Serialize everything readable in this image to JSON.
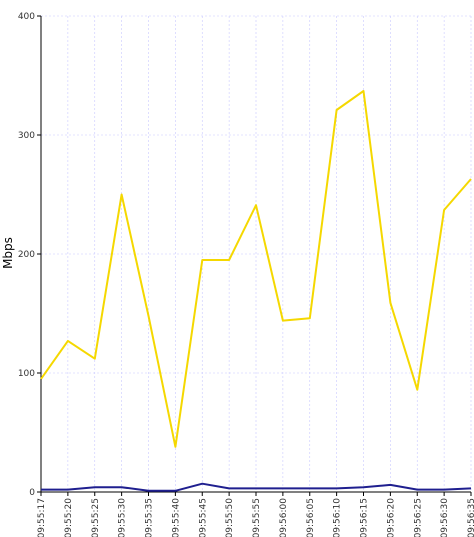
{
  "chart_data": {
    "type": "line",
    "ylabel": "Mbps",
    "xlabel": "",
    "title": "",
    "ylim": [
      0,
      400
    ],
    "yticks": [
      0,
      100,
      200,
      300,
      400
    ],
    "grid": true,
    "categories": [
      "09:55:17",
      "09:55:20",
      "09:55:25",
      "09:55:30",
      "09:55:35",
      "09:55:40",
      "09:55:45",
      "09:55:50",
      "09:55:55",
      "09:56:00",
      "09:56:05",
      "09:56:10",
      "09:56:15",
      "09:56:20",
      "09:56:25",
      "09:56:30",
      "09:56:35"
    ],
    "series": [
      {
        "color": "#f5d800",
        "values": [
          95,
          127,
          112,
          250,
          148,
          38,
          195,
          195,
          241,
          144,
          146,
          321,
          337,
          159,
          86,
          237,
          263
        ]
      },
      {
        "color": "#1f1f8f",
        "values": [
          2,
          2,
          4,
          4,
          1,
          1,
          7,
          3,
          3,
          3,
          3,
          3,
          4,
          6,
          2,
          2,
          3
        ]
      }
    ]
  }
}
